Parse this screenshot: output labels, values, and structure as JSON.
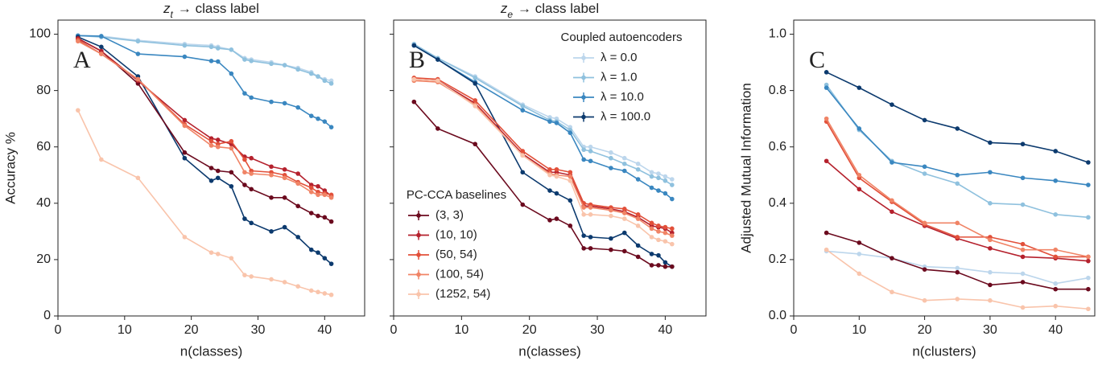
{
  "chart_data": [
    {
      "type": "line",
      "title": [
        "z",
        "t",
        "→ class label"
      ],
      "annotation": "A",
      "xlabel": "n(classes)",
      "ylabel": "Accuracy %",
      "xlim": [
        0,
        46
      ],
      "xticks": [
        0,
        10,
        20,
        30,
        40
      ],
      "ylim": [
        0,
        105
      ],
      "yticks": [
        0,
        20,
        40,
        60,
        80,
        100
      ],
      "ytick_labels": true,
      "legend": false,
      "x": [
        3,
        6.5,
        12,
        19,
        23,
        24,
        26,
        28,
        29,
        32,
        34,
        36,
        38,
        39,
        40,
        41
      ],
      "series_groups": [
        {
          "name": "Coupled autoencoders",
          "corner": "upper right",
          "series": [
            {
              "name": "λ = 0.0",
              "color": "#bcd6ec",
              "values": [
                99.5,
                99.3,
                97.8,
                96.5,
                96,
                95.5,
                94.5,
                91.5,
                91,
                90,
                89,
                88,
                86.5,
                85,
                84,
                83.5
              ]
            },
            {
              "name": "λ = 1.0",
              "color": "#8fc1de",
              "values": [
                99.5,
                99,
                97.5,
                96,
                95.5,
                95,
                94.5,
                91,
                90.5,
                89.5,
                89,
                87.5,
                86,
                85,
                83.5,
                82.5
              ]
            },
            {
              "name": "λ = 10.0",
              "color": "#3a87c0",
              "values": [
                99.5,
                99.3,
                93,
                92,
                90.5,
                90.3,
                86,
                79,
                77.5,
                76,
                75.5,
                74,
                71,
                70,
                69,
                67
              ]
            },
            {
              "name": "λ = 100.0",
              "color": "#0c3a6e",
              "values": [
                99,
                95.5,
                85,
                56,
                48,
                49,
                46,
                34.5,
                33,
                30,
                31.5,
                28,
                23.5,
                22.5,
                20.5,
                18.5
              ]
            }
          ]
        },
        {
          "name": "PC-CCA baselines",
          "corner": "lower left",
          "series": [
            {
              "name": "(3, 3)",
              "color": "#6b0a1e",
              "values": [
                98.5,
                94,
                82.5,
                58,
                52.5,
                51.5,
                51,
                46.5,
                45,
                42,
                42,
                39,
                36.5,
                35.5,
                35,
                33.5
              ]
            },
            {
              "name": "(10, 10)",
              "color": "#b5212d",
              "values": [
                98.5,
                94,
                83.5,
                69.5,
                63,
                62.5,
                61,
                56.5,
                56,
                53,
                52,
                50.5,
                46.5,
                46,
                44.5,
                42.5
              ]
            },
            {
              "name": "(50, 54)",
              "color": "#e2503a",
              "values": [
                98,
                93,
                84,
                68,
                62,
                61,
                62,
                55.5,
                51.5,
                51,
                50,
                47.5,
                45.5,
                44,
                43.5,
                43
              ]
            },
            {
              "name": "(100, 54)",
              "color": "#f08466",
              "values": [
                97.5,
                93,
                84,
                67.5,
                60.5,
                60,
                59.5,
                51,
                50.5,
                50,
                49,
                47,
                44,
                43,
                43,
                42
              ]
            },
            {
              "name": "(1252, 54)",
              "color": "#f9c4ab",
              "values": [
                73,
                55.5,
                49,
                28,
                22.5,
                22,
                20.5,
                14.5,
                14,
                13,
                12,
                10.5,
                9,
                8.5,
                8,
                7.5
              ]
            }
          ]
        }
      ]
    },
    {
      "type": "line",
      "title": [
        "z",
        "e",
        "→ class label"
      ],
      "annotation": "B",
      "xlabel": "n(classes)",
      "xlim": [
        0,
        46
      ],
      "xticks": [
        0,
        10,
        20,
        30,
        40
      ],
      "ylim": [
        0,
        105
      ],
      "yticks": [
        0,
        20,
        40,
        60,
        80,
        100
      ],
      "ytick_labels": false,
      "legend": true,
      "x": [
        3,
        6.5,
        12,
        19,
        23,
        24,
        26,
        28,
        29,
        32,
        34,
        36,
        38,
        39,
        40,
        41
      ],
      "series_groups": [
        {
          "name": "Coupled autoencoders",
          "corner": "upper right",
          "series": [
            {
              "name": "λ = 0.0",
              "color": "#bcd6ec",
              "values": [
                96.5,
                91.5,
                85,
                75,
                70.5,
                70,
                67,
                60,
                60,
                58,
                56,
                54,
                51,
                50.5,
                49.5,
                48.5
              ]
            },
            {
              "name": "λ = 1.0",
              "color": "#8fc1de",
              "values": [
                96.5,
                91.5,
                84.5,
                74.5,
                69.5,
                69,
                66,
                59,
                58.5,
                56,
                54,
                52,
                49.5,
                49,
                48,
                46.5
              ]
            },
            {
              "name": "λ = 10.0",
              "color": "#3a87c0",
              "values": [
                96,
                91,
                83,
                73,
                69,
                68.5,
                65,
                55.5,
                55,
                52.5,
                51.5,
                48.5,
                45.5,
                44.5,
                43.5,
                41.5
              ]
            },
            {
              "name": "λ = 100.0",
              "color": "#0c3a6e",
              "values": [
                96,
                91,
                82.5,
                51,
                44.5,
                43.5,
                41,
                28.5,
                28,
                27.5,
                29.5,
                25,
                22,
                21.5,
                19,
                17.5
              ]
            }
          ]
        },
        {
          "name": "PC-CCA baselines",
          "corner": "lower left",
          "series": [
            {
              "name": "(3, 3)",
              "color": "#6b0a1e",
              "values": [
                76,
                66.5,
                61,
                39.5,
                34,
                34.5,
                32,
                24,
                24,
                23.5,
                23,
                21,
                18,
                18,
                17.5,
                17.5
              ]
            },
            {
              "name": "(10, 10)",
              "color": "#b5212d",
              "values": [
                84,
                83.5,
                75.5,
                57.5,
                51,
                51,
                50,
                39,
                39,
                38,
                37,
                35,
                32,
                31.5,
                31,
                29.5
              ]
            },
            {
              "name": "(50, 54)",
              "color": "#e2503a",
              "values": [
                84.5,
                84,
                76.5,
                58.5,
                52,
                52,
                51,
                40,
                39.5,
                38.5,
                38,
                36,
                33,
                32,
                31.5,
                31
              ]
            },
            {
              "name": "(100, 54)",
              "color": "#f08466",
              "values": [
                83.5,
                83,
                75,
                57,
                50.5,
                50,
                49.5,
                38.5,
                38.5,
                37.5,
                36.5,
                34.5,
                31,
                30,
                29.5,
                28.5
              ]
            },
            {
              "name": "(1252, 54)",
              "color": "#f9c4ab",
              "values": [
                84,
                83.5,
                74.5,
                57,
                50,
                49.5,
                48,
                36,
                36,
                35.5,
                34.5,
                32,
                28,
                27,
                26.5,
                25.5
              ]
            }
          ]
        }
      ]
    },
    {
      "type": "line",
      "annotation": "C",
      "xlabel": "n(clusters)",
      "ylabel": "Adjusted Mutual Information",
      "xlim": [
        0,
        46
      ],
      "xticks": [
        0,
        10,
        20,
        30,
        40
      ],
      "ylim": [
        0,
        1.05
      ],
      "yticks": [
        {
          "value": 0,
          "label": "0.0"
        },
        0.2,
        0.4,
        0.6,
        0.8,
        {
          "value": 1,
          "label": "1.0"
        }
      ],
      "ytick_labels": true,
      "legend": false,
      "x": [
        5,
        10,
        15,
        20,
        25,
        30,
        35,
        40,
        45
      ],
      "series_groups": [
        {
          "name": "Coupled autoencoders",
          "corner": "upper right",
          "series": [
            {
              "name": "λ = 0.0",
              "color": "#bcd6ec",
              "values": [
                0.23,
                0.22,
                0.205,
                0.175,
                0.17,
                0.155,
                0.15,
                0.115,
                0.135
              ]
            },
            {
              "name": "λ = 1.0",
              "color": "#8fc1de",
              "values": [
                0.82,
                0.66,
                0.55,
                0.505,
                0.47,
                0.4,
                0.395,
                0.36,
                0.35
              ]
            },
            {
              "name": "λ = 10.0",
              "color": "#3a87c0",
              "values": [
                0.81,
                0.665,
                0.545,
                0.53,
                0.5,
                0.51,
                0.49,
                0.48,
                0.465
              ]
            },
            {
              "name": "λ = 100.0",
              "color": "#0c3a6e",
              "values": [
                0.865,
                0.81,
                0.75,
                0.695,
                0.665,
                0.615,
                0.61,
                0.585,
                0.545
              ]
            }
          ]
        },
        {
          "name": "PC-CCA baselines",
          "corner": "lower left",
          "series": [
            {
              "name": "(3, 3)",
              "color": "#6b0a1e",
              "values": [
                0.295,
                0.26,
                0.205,
                0.165,
                0.155,
                0.11,
                0.12,
                0.095,
                0.095
              ]
            },
            {
              "name": "(10, 10)",
              "color": "#b5212d",
              "values": [
                0.55,
                0.45,
                0.37,
                0.32,
                0.275,
                0.24,
                0.21,
                0.205,
                0.195
              ]
            },
            {
              "name": "(50, 54)",
              "color": "#e2503a",
              "values": [
                0.69,
                0.49,
                0.405,
                0.325,
                0.28,
                0.28,
                0.255,
                0.21,
                0.21
              ]
            },
            {
              "name": "(100, 54)",
              "color": "#f08466",
              "values": [
                0.7,
                0.5,
                0.41,
                0.33,
                0.33,
                0.27,
                0.235,
                0.235,
                0.21
              ]
            },
            {
              "name": "(1252, 54)",
              "color": "#f9c4ab",
              "values": [
                0.235,
                0.15,
                0.085,
                0.055,
                0.06,
                0.055,
                0.03,
                0.035,
                0.025
              ]
            }
          ]
        }
      ]
    }
  ]
}
